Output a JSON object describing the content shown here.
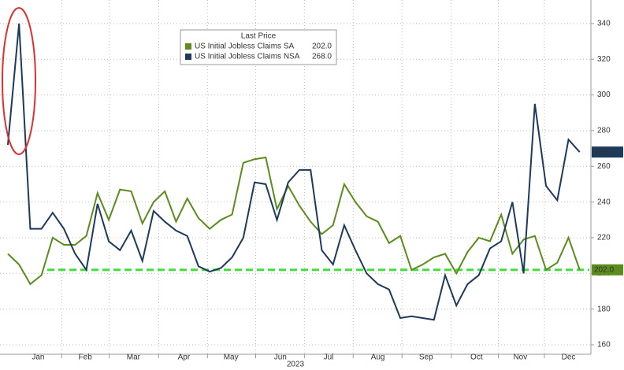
{
  "chart_data": {
    "type": "line",
    "legend_title": "Last Price",
    "x_label": "2023",
    "xlim": [
      -0.7,
      52
    ],
    "xticks": [
      {
        "value": 2.7,
        "label": "Jan"
      },
      {
        "value": 6.9,
        "label": "Feb"
      },
      {
        "value": 11.2,
        "label": "Mar"
      },
      {
        "value": 15.7,
        "label": "Apr"
      },
      {
        "value": 19.9,
        "label": "May"
      },
      {
        "value": 24.3,
        "label": "Jun"
      },
      {
        "value": 28.6,
        "label": "Jul"
      },
      {
        "value": 33,
        "label": "Aug"
      },
      {
        "value": 37.3,
        "label": "Sep"
      },
      {
        "value": 41.8,
        "label": "Oct"
      },
      {
        "value": 45.7,
        "label": "Nov"
      },
      {
        "value": 50,
        "label": "Dec"
      }
    ],
    "ylim": [
      154.7,
      353.2
    ],
    "yticks": [
      160,
      180,
      200,
      220,
      240,
      260,
      280,
      300,
      320,
      340
    ],
    "grid": true,
    "reference_line": {
      "value": 202,
      "color": "#3fe03a"
    },
    "series": [
      {
        "name": "US Initial Jobless Claims SA",
        "color": "#5b8c1c",
        "last_value_label": "202.0",
        "values": [
          211,
          205,
          194,
          199,
          220,
          216,
          216,
          221,
          245,
          230,
          247,
          246,
          228,
          240,
          246,
          229,
          242,
          231,
          225,
          230,
          233,
          262,
          264,
          265,
          236,
          249,
          238,
          229,
          222,
          227,
          250,
          240,
          232,
          229,
          217,
          221,
          202,
          205,
          209,
          211,
          200,
          212,
          220,
          218,
          233,
          211,
          219,
          221,
          202,
          206,
          220,
          202
        ]
      },
      {
        "name": "US Initial Jobless Claims NSA",
        "color": "#1d3a5c",
        "last_value_label": "268.0",
        "values": [
          272,
          340,
          225,
          225,
          234,
          225,
          211,
          202,
          239,
          218,
          213,
          224,
          207,
          235,
          229,
          224,
          221,
          204,
          201,
          203,
          209,
          220,
          251,
          250,
          230,
          251,
          258,
          258,
          213,
          205,
          227,
          213,
          200,
          194,
          191,
          175,
          176,
          175,
          174,
          199,
          182,
          194,
          199,
          214,
          218,
          240,
          200,
          295,
          249,
          241,
          275,
          268
        ]
      }
    ]
  }
}
